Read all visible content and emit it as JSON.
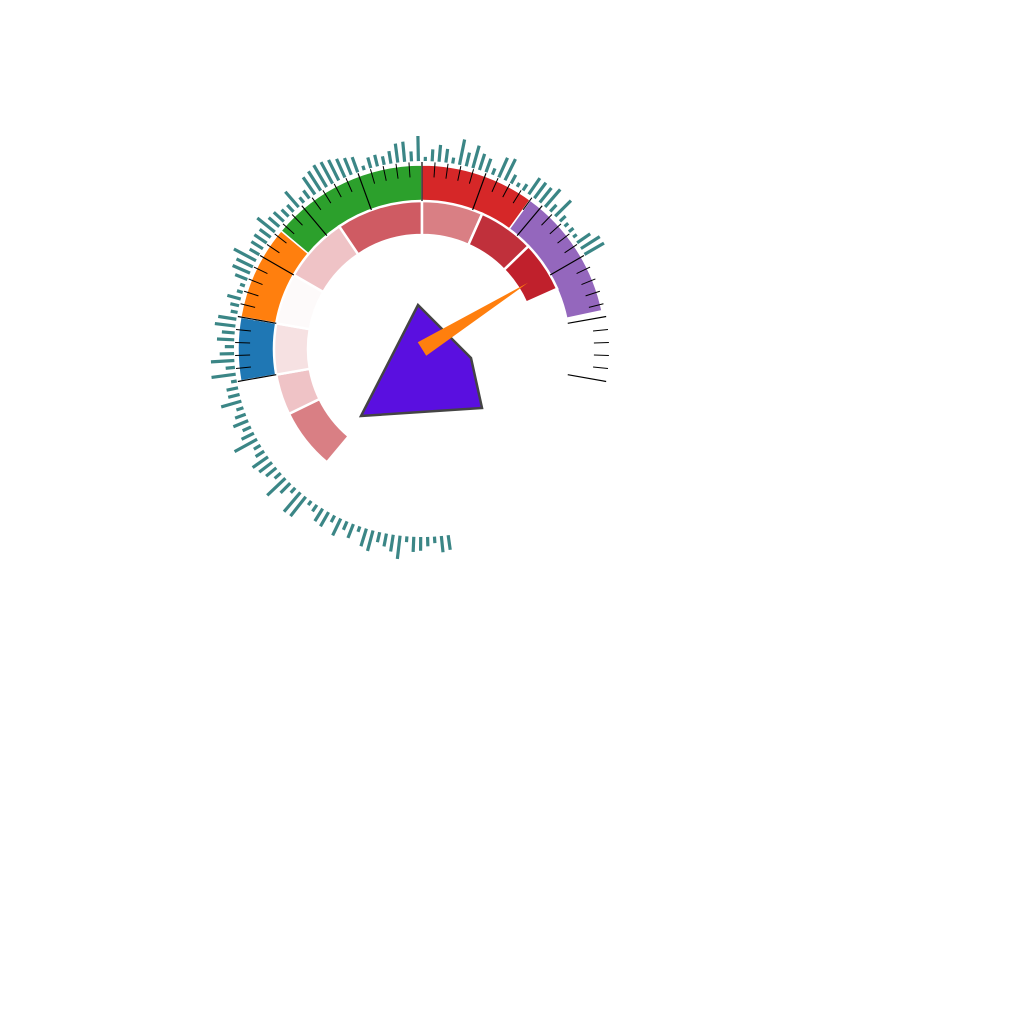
{
  "chart_data": {
    "type": "gauge",
    "title": "",
    "value_range": [
      0,
      100
    ],
    "angle_range_deg": [
      -100,
      100
    ],
    "needle": {
      "value": 79,
      "color": "#ff7f0e"
    },
    "outer_bands": [
      {
        "from": 0,
        "to": 10,
        "color": "#1f77b4"
      },
      {
        "from": 10,
        "to": 25,
        "color": "#ff7f0e"
      },
      {
        "from": 25,
        "to": 50,
        "color": "#2ca02c"
      },
      {
        "from": 50,
        "to": 68,
        "color": "#d62728"
      },
      {
        "from": 68,
        "to": 89,
        "color": "#9467bd"
      }
    ],
    "inner_bands": [
      {
        "from": -20,
        "to": -8,
        "color": "#d97f84"
      },
      {
        "from": -8,
        "to": 0,
        "color": "#efc3c6"
      },
      {
        "from": 0,
        "to": 10,
        "color": "#f6e1e2"
      },
      {
        "from": 10,
        "to": 20,
        "color": "#fdfafa"
      },
      {
        "from": 20,
        "to": 33,
        "color": "#efc3c6"
      },
      {
        "from": 33,
        "to": 50,
        "color": "#cf5b63"
      },
      {
        "from": 50,
        "to": 62,
        "color": "#d97f84"
      },
      {
        "from": 62,
        "to": 73,
        "color": "#c0303b"
      },
      {
        "from": 73,
        "to": 83,
        "color": "#c0202c"
      }
    ],
    "ring_ticks_color": "#3b8686",
    "ring_ticks_range": [
      -44,
      80
    ],
    "center_polygon_color": "#5a0fe0",
    "center_polygon_stroke": "#444444"
  }
}
